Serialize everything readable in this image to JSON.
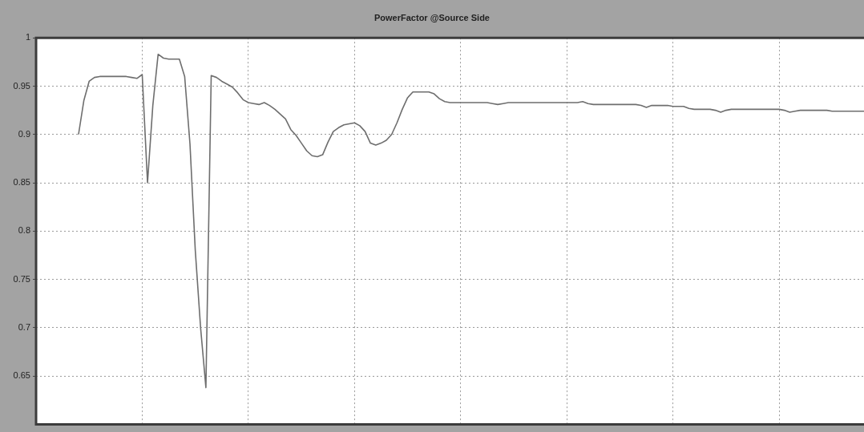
{
  "chart_data": {
    "type": "line",
    "title": "PowerFactor @Source Side",
    "categories": [
      null,
      null,
      null,
      null,
      null,
      null,
      null,
      null,
      null,
      null,
      null,
      null,
      null,
      null,
      null,
      null,
      null,
      null,
      null,
      null,
      null,
      null,
      null,
      null,
      null,
      null,
      null,
      null,
      null,
      null,
      null,
      null,
      null,
      null,
      null,
      null,
      null,
      null,
      null,
      null,
      null,
      null,
      null,
      null,
      null,
      null,
      null,
      null,
      null,
      null,
      null,
      null,
      null,
      null,
      null,
      null,
      null,
      null,
      null,
      null,
      null,
      null,
      null,
      null,
      null,
      null,
      null,
      null,
      null,
      null,
      null,
      null,
      null,
      null,
      null,
      null,
      null,
      null,
      null,
      null,
      null,
      null,
      null,
      null,
      null,
      null,
      null,
      null,
      null,
      null,
      null,
      null,
      null,
      null,
      null,
      null,
      null,
      null,
      null,
      null,
      null,
      null,
      null,
      null,
      null,
      null,
      null,
      null,
      null,
      null,
      null,
      null,
      null,
      null,
      null,
      null,
      null,
      null,
      null,
      null,
      null,
      null,
      null,
      null,
      null,
      null,
      null,
      null,
      null,
      null,
      null,
      null,
      null,
      null,
      null,
      null,
      null,
      null,
      null,
      null,
      null,
      null,
      null,
      null,
      null,
      null,
      null,
      null,
      null,
      null,
      null,
      null,
      null,
      null,
      null,
      null,
      null
    ],
    "series": [
      {
        "color": "#6e6e6e",
        "values": [
          null,
          null,
          null,
          null,
          null,
          null,
          null,
          null,
          0.9,
          0.935,
          0.955,
          0.959,
          0.96,
          0.96,
          0.96,
          0.96,
          0.96,
          0.96,
          0.959,
          0.958,
          0.962,
          0.85,
          0.93,
          0.983,
          0.979,
          0.978,
          0.978,
          0.978,
          0.96,
          0.89,
          0.78,
          0.7,
          0.638,
          0.961,
          0.959,
          0.955,
          0.952,
          0.949,
          0.943,
          0.936,
          0.933,
          0.932,
          0.931,
          0.933,
          0.93,
          0.926,
          0.921,
          0.916,
          0.905,
          0.899,
          0.891,
          0.883,
          0.878,
          0.877,
          0.879,
          0.892,
          0.903,
          0.907,
          0.91,
          0.911,
          0.912,
          0.909,
          0.903,
          0.891,
          0.889,
          0.891,
          0.894,
          0.9,
          0.912,
          0.926,
          0.938,
          0.944,
          0.944,
          0.944,
          0.944,
          0.942,
          0.937,
          0.934,
          0.933,
          0.933,
          0.933,
          0.933,
          0.933,
          0.933,
          0.933,
          0.933,
          0.932,
          0.931,
          0.932,
          0.933,
          0.933,
          0.933,
          0.933,
          0.933,
          0.933,
          0.933,
          0.933,
          0.933,
          0.933,
          0.933,
          0.933,
          0.933,
          0.933,
          0.934,
          0.932,
          0.931,
          0.931,
          0.931,
          0.931,
          0.931,
          0.931,
          0.931,
          0.931,
          0.931,
          0.93,
          0.928,
          0.93,
          0.93,
          0.93,
          0.93,
          0.929,
          0.929,
          0.929,
          0.927,
          0.926,
          0.926,
          0.926,
          0.926,
          0.925,
          0.923,
          0.925,
          0.926,
          0.926,
          0.926,
          0.926,
          0.926,
          0.926,
          0.926,
          0.926,
          0.926,
          0.926,
          0.925,
          0.923,
          0.924,
          0.925,
          0.925,
          0.925,
          0.925,
          0.925,
          0.925,
          0.924,
          0.924,
          0.924,
          0.924,
          0.924,
          0.924,
          0.924
        ]
      }
    ],
    "ylim": [
      0.6,
      1
    ],
    "yticks": [
      0.65,
      0.7,
      0.75,
      0.8,
      0.85,
      0.9,
      0.95,
      1
    ],
    "grid": true,
    "tick_labels": "y",
    "marker": "none",
    "legend": false
  }
}
